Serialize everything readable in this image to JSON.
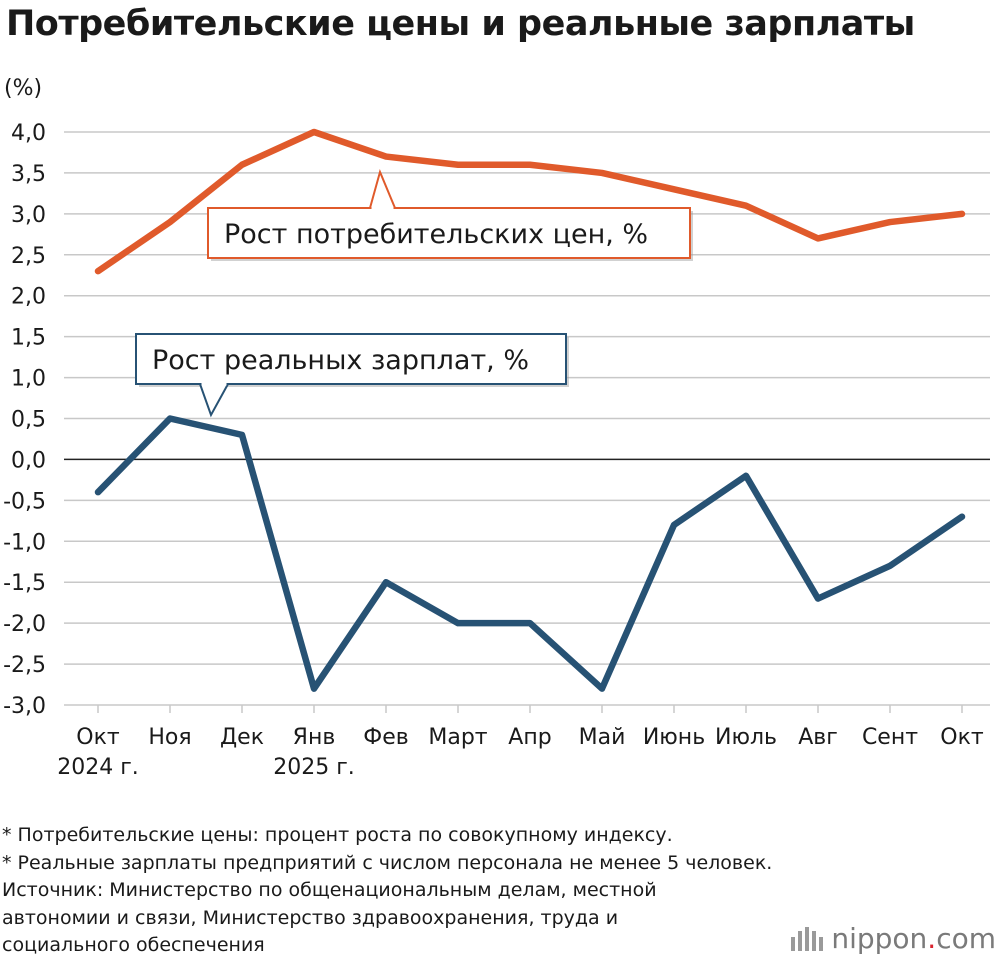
{
  "title": "Потребительские цены и реальные зарплаты",
  "brand": {
    "name": "nippon",
    "dot": ".",
    "tld": "com",
    "icon": "nippon-logo-icon"
  },
  "notes": [
    "* Потребительские цены: процент роста по совокупному индексу.",
    "* Реальные зарплаты предприятий с числом персонала не менее 5 человек.",
    "Источник: Министерство по общенациональным делам, местной",
    "автономии и связи, Министерство здравоохранения, труда и",
    "социального обеспечения"
  ],
  "chart_data": {
    "type": "line",
    "unit_label": "(%)",
    "categories": [
      "Окт",
      "Ноя",
      "Дек",
      "Янв",
      "Фев",
      "Март",
      "Апр",
      "Май",
      "Июнь",
      "Июль",
      "Авг",
      "Сент",
      "Окт"
    ],
    "category_sublabels": [
      "2024 г.",
      "",
      "",
      "2025 г.",
      "",
      "",
      "",
      "",
      "",
      "",
      "",
      "",
      ""
    ],
    "ylim": [
      -3.0,
      4.0
    ],
    "yticks": [
      -3.0,
      -2.5,
      -2.0,
      -1.5,
      -1.0,
      -0.5,
      0.0,
      0.5,
      1.0,
      1.5,
      2.0,
      2.5,
      3.0,
      3.5,
      4.0
    ],
    "ytick_labels": [
      "-3,0",
      "-2,5",
      "-2,0",
      "-1,5",
      "-1,0",
      "-0,5",
      "0,0",
      "0,5",
      "1,0",
      "1,5",
      "2,0",
      "2,5",
      "3,0",
      "3,5",
      "4,0"
    ],
    "grid": true,
    "series": [
      {
        "name": "Рост потребительских цен, %",
        "color": "#e05a2b",
        "values": [
          2.3,
          2.9,
          3.6,
          4.0,
          3.7,
          3.6,
          3.6,
          3.5,
          3.3,
          3.1,
          2.7,
          2.9,
          3.0
        ]
      },
      {
        "name": "Рост реальных зарплат, %",
        "color": "#275274",
        "values": [
          -0.4,
          0.5,
          0.3,
          -2.8,
          -1.5,
          -2.0,
          -2.0,
          -2.8,
          -0.8,
          -0.2,
          -1.7,
          -1.3,
          -0.7
        ]
      }
    ]
  }
}
